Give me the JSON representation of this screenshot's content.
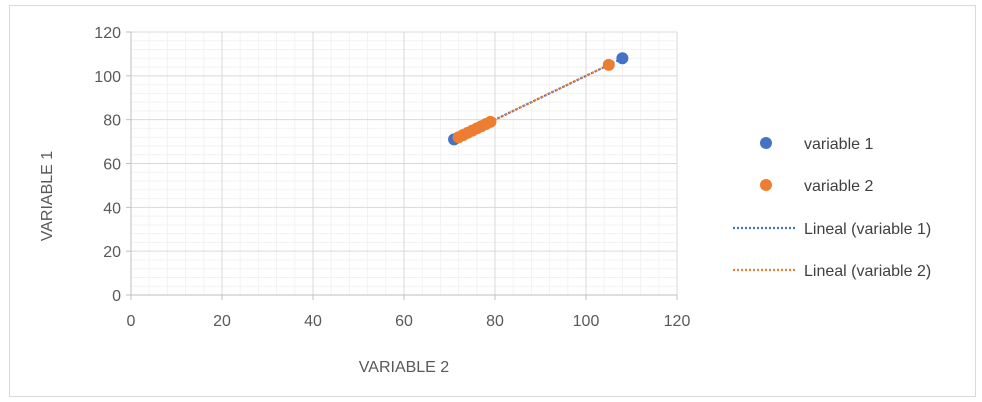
{
  "chart_data": {
    "type": "scatter",
    "xlabel": "VARIABLE 2",
    "ylabel": "VARIABLE 1",
    "xlim": [
      0,
      120
    ],
    "ylim": [
      0,
      120
    ],
    "x_ticks": [
      0,
      20,
      40,
      60,
      80,
      100,
      120
    ],
    "y_ticks": [
      0,
      20,
      40,
      60,
      80,
      100,
      120
    ],
    "grid": "major and minor",
    "legend_position": "right",
    "series": [
      {
        "name": "variable 1",
        "color": "#4472C4",
        "points": [
          [
            71,
            71
          ],
          [
            108,
            108
          ]
        ]
      },
      {
        "name": "variable 2",
        "color": "#ED7D31",
        "points": [
          [
            72,
            72
          ],
          [
            73,
            73
          ],
          [
            74,
            74
          ],
          [
            75,
            75
          ],
          [
            76,
            76
          ],
          [
            77,
            77
          ],
          [
            78,
            78
          ],
          [
            79,
            79
          ],
          [
            105,
            105
          ]
        ]
      }
    ],
    "trendlines": [
      {
        "name": "Lineal (variable 1)",
        "color": "#4472C4",
        "style": "dotted",
        "from": [
          71,
          71
        ],
        "to": [
          108,
          108
        ]
      },
      {
        "name": "Lineal (variable 2)",
        "color": "#ED7D31",
        "style": "dotted",
        "from": [
          72,
          72
        ],
        "to": [
          105,
          105
        ]
      }
    ]
  }
}
